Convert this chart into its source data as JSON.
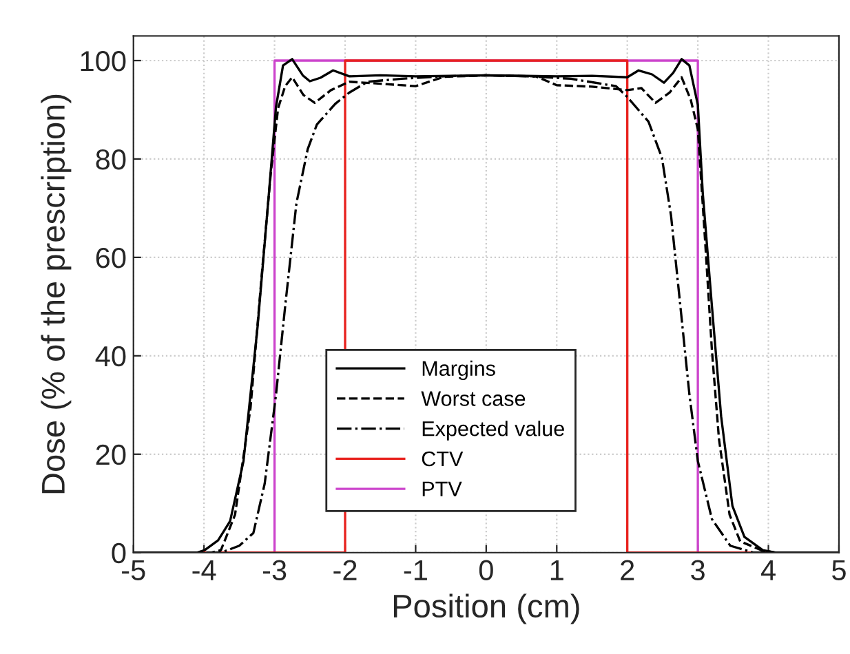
{
  "chart_data": {
    "type": "line",
    "xlabel": "Position (cm)",
    "ylabel": "Dose (% of the prescription)",
    "xlim": [
      -5,
      5
    ],
    "ylim": [
      0,
      105
    ],
    "xticks": [
      -5,
      -4,
      -3,
      -2,
      -1,
      0,
      1,
      2,
      3,
      4,
      5
    ],
    "yticks": [
      0,
      20,
      40,
      60,
      80,
      100
    ],
    "grid": true,
    "legend": "bottom",
    "marker": "none",
    "series": [
      {
        "name": "Margins",
        "color": "#000000",
        "line_style": "solid",
        "x": [
          -5,
          -4.1,
          -3.99,
          -3.8,
          -3.63,
          -3.44,
          -3.24,
          -3.08,
          -2.98,
          -2.88,
          -2.75,
          -2.6,
          -2.5,
          -2.35,
          -2.17,
          -1.94,
          -1.5,
          -1,
          0,
          1,
          1.5,
          2.0,
          2.16,
          2.35,
          2.52,
          2.65,
          2.77,
          2.88,
          3.0,
          3.07,
          3.2,
          3.33,
          3.49,
          3.66,
          3.92,
          4.1,
          5
        ],
        "values": [
          0,
          0,
          0.5,
          2.5,
          6.4,
          18.6,
          46,
          73,
          90.5,
          99,
          100.3,
          97,
          95.8,
          96.5,
          98,
          96.8,
          97,
          96.8,
          97,
          96.8,
          96.9,
          96.6,
          98,
          97.2,
          95.5,
          97.5,
          100.3,
          99,
          91,
          73,
          50,
          27.7,
          9.5,
          3.2,
          0.5,
          0,
          0
        ]
      },
      {
        "name": "Worst case",
        "color": "#000000",
        "line_style": "dashed",
        "x": [
          -5,
          -3.9,
          -3.76,
          -3.56,
          -3.34,
          -3.18,
          -3.05,
          -2.95,
          -2.85,
          -2.75,
          -2.59,
          -2.43,
          -2.2,
          -1.94,
          -1.5,
          -1,
          -0.6,
          0,
          0.7,
          1,
          1.5,
          2.0,
          2.2,
          2.4,
          2.6,
          2.77,
          2.9,
          3.0,
          3.1,
          3.2,
          3.3,
          3.45,
          3.6,
          3.9,
          4.1,
          5
        ],
        "values": [
          0,
          0,
          0.5,
          7.7,
          29.5,
          56.7,
          77.6,
          90.3,
          94.8,
          96.6,
          93,
          91.4,
          94,
          95.7,
          95.3,
          94.8,
          96.7,
          97,
          96.8,
          95,
          94.7,
          94,
          94.4,
          91.4,
          93.5,
          96.6,
          92,
          86,
          64,
          41,
          23,
          7.7,
          2.3,
          0.5,
          0,
          0
        ]
      },
      {
        "name": "Expected value",
        "color": "#000000",
        "line_style": "dashdot",
        "x": [
          -5,
          -3.76,
          -3.5,
          -3.3,
          -3.14,
          -2.98,
          -2.85,
          -2.69,
          -2.53,
          -2.4,
          -2.14,
          -1.94,
          -1.68,
          -1.2,
          -0.6,
          0,
          0.6,
          1.2,
          1.84,
          2.0,
          2.3,
          2.49,
          2.62,
          2.75,
          2.88,
          3.0,
          3.2,
          3.46,
          3.79,
          5
        ],
        "values": [
          0,
          0,
          1.4,
          4,
          14,
          32,
          50,
          71,
          82,
          87,
          91.2,
          93.5,
          95.7,
          96.3,
          96.8,
          97,
          96.8,
          96.3,
          94.8,
          92.6,
          87.6,
          80.3,
          68.5,
          50.4,
          32.2,
          18.6,
          6.8,
          1.4,
          0,
          0
        ]
      },
      {
        "name": "CTV",
        "color": "#e8221e",
        "line_style": "solid",
        "x": [
          -5,
          -2,
          -2,
          2,
          2,
          5
        ],
        "values": [
          0,
          0,
          100,
          100,
          0,
          0
        ]
      },
      {
        "name": "PTV",
        "color": "#cc44cc",
        "line_style": "solid",
        "x": [
          -5,
          -3,
          -3,
          3,
          3,
          5
        ],
        "values": [
          0,
          0,
          100,
          100,
          0,
          0
        ]
      }
    ]
  }
}
